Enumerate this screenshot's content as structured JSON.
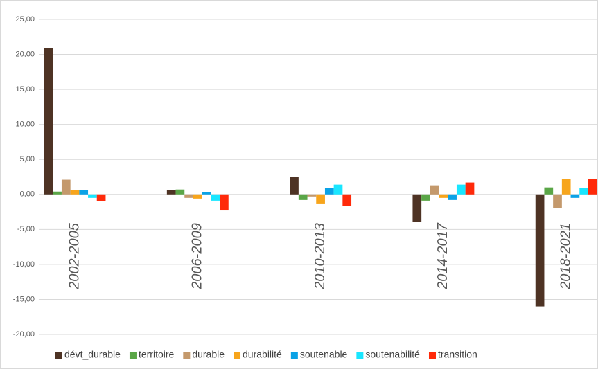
{
  "chart_data": {
    "type": "bar",
    "categories": [
      "2002-2005",
      "2006-2009",
      "2010-2013",
      "2014-2017",
      "2018-2021"
    ],
    "series": [
      {
        "name": "dévt_durable",
        "color": "#4e3324",
        "values": [
          20.9,
          0.6,
          2.5,
          -3.9,
          -16.0
        ]
      },
      {
        "name": "territoire",
        "color": "#5aa647",
        "values": [
          0.4,
          0.7,
          -0.8,
          -0.9,
          1.0
        ]
      },
      {
        "name": "durable",
        "color": "#c4996c",
        "values": [
          2.1,
          -0.5,
          -0.3,
          1.3,
          -2.0
        ]
      },
      {
        "name": "durabilité",
        "color": "#f7a51c",
        "values": [
          0.6,
          -0.6,
          -1.3,
          -0.5,
          2.2
        ]
      },
      {
        "name": "soutenable",
        "color": "#0aa2e6",
        "values": [
          0.6,
          0.3,
          0.9,
          -0.8,
          -0.5
        ]
      },
      {
        "name": "soutenabilité",
        "color": "#19e6ff",
        "values": [
          -0.5,
          -0.9,
          1.4,
          1.4,
          0.9
        ]
      },
      {
        "name": "transition",
        "color": "#ff2a0a",
        "values": [
          -1.0,
          -2.3,
          -1.7,
          1.7,
          2.2
        ]
      }
    ],
    "ylim": [
      -20,
      25
    ],
    "yticks": [
      {
        "value": -20,
        "label": "-20,00"
      },
      {
        "value": -15,
        "label": "-15,00"
      },
      {
        "value": -10,
        "label": "-10,00"
      },
      {
        "value": -5,
        "label": "-5,00"
      },
      {
        "value": 0,
        "label": "0,00"
      },
      {
        "value": 5,
        "label": "5,00"
      },
      {
        "value": 10,
        "label": "10,00"
      },
      {
        "value": 15,
        "label": "15,00"
      },
      {
        "value": 20,
        "label": "20,00"
      },
      {
        "value": 25,
        "label": "25,00"
      }
    ],
    "grid": true,
    "legend": "bottom"
  }
}
